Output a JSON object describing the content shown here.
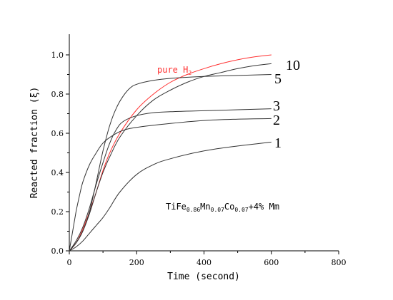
{
  "chart_data": {
    "type": "line",
    "xlabel": "Time (second)",
    "ylabel": "Reacted fraction (ξ)",
    "xlim": [
      0,
      800
    ],
    "ylim": [
      0,
      1.1
    ],
    "x_ticks": [
      "0",
      "200",
      "400",
      "600",
      "800"
    ],
    "y_ticks": [
      "0.0",
      "0.2",
      "0.4",
      "0.6",
      "0.8",
      "1.0"
    ],
    "grid": false,
    "annotation": {
      "base": "TiFe",
      "sub1": "0.86",
      "el2": "Mn",
      "sub2": "0.07",
      "el3": "Co",
      "sub3": "0.07",
      "suffix": "+4% Mm"
    },
    "series": [
      {
        "name": "pure H2",
        "label_main": "pure H",
        "label_sub": "2",
        "color": "#ff3030",
        "points": [
          [
            0,
            0
          ],
          [
            20,
            0.04
          ],
          [
            40,
            0.11
          ],
          [
            60,
            0.2
          ],
          [
            80,
            0.3
          ],
          [
            100,
            0.41
          ],
          [
            120,
            0.5
          ],
          [
            150,
            0.6
          ],
          [
            200,
            0.72
          ],
          [
            250,
            0.8
          ],
          [
            300,
            0.86
          ],
          [
            350,
            0.9
          ],
          [
            400,
            0.93
          ],
          [
            450,
            0.955
          ],
          [
            500,
            0.975
          ],
          [
            550,
            0.99
          ],
          [
            600,
            1.0
          ]
        ]
      },
      {
        "name": "10",
        "label_main": "10",
        "color": "#333333",
        "points": [
          [
            0,
            0
          ],
          [
            20,
            0.04
          ],
          [
            40,
            0.1
          ],
          [
            60,
            0.19
          ],
          [
            80,
            0.3
          ],
          [
            100,
            0.4
          ],
          [
            120,
            0.48
          ],
          [
            150,
            0.58
          ],
          [
            200,
            0.69
          ],
          [
            250,
            0.77
          ],
          [
            300,
            0.82
          ],
          [
            350,
            0.86
          ],
          [
            400,
            0.89
          ],
          [
            450,
            0.91
          ],
          [
            500,
            0.93
          ],
          [
            550,
            0.945
          ],
          [
            600,
            0.955
          ]
        ]
      },
      {
        "name": "5",
        "label_main": "5",
        "color": "#333333",
        "points": [
          [
            0,
            0
          ],
          [
            20,
            0.04
          ],
          [
            40,
            0.1
          ],
          [
            60,
            0.2
          ],
          [
            80,
            0.35
          ],
          [
            100,
            0.51
          ],
          [
            120,
            0.64
          ],
          [
            140,
            0.73
          ],
          [
            160,
            0.79
          ],
          [
            180,
            0.83
          ],
          [
            200,
            0.85
          ],
          [
            250,
            0.87
          ],
          [
            300,
            0.88
          ],
          [
            400,
            0.89
          ],
          [
            500,
            0.895
          ],
          [
            600,
            0.9
          ]
        ]
      },
      {
        "name": "3",
        "label_main": "3",
        "color": "#333333",
        "points": [
          [
            0,
            0
          ],
          [
            20,
            0.05
          ],
          [
            40,
            0.12
          ],
          [
            60,
            0.22
          ],
          [
            80,
            0.34
          ],
          [
            100,
            0.45
          ],
          [
            120,
            0.55
          ],
          [
            140,
            0.62
          ],
          [
            160,
            0.66
          ],
          [
            200,
            0.69
          ],
          [
            250,
            0.705
          ],
          [
            300,
            0.71
          ],
          [
            400,
            0.715
          ],
          [
            500,
            0.72
          ],
          [
            600,
            0.725
          ]
        ]
      },
      {
        "name": "2",
        "label_main": "2",
        "color": "#333333",
        "points": [
          [
            0,
            0
          ],
          [
            10,
            0.1
          ],
          [
            20,
            0.2
          ],
          [
            30,
            0.28
          ],
          [
            40,
            0.35
          ],
          [
            60,
            0.44
          ],
          [
            80,
            0.5
          ],
          [
            100,
            0.55
          ],
          [
            130,
            0.59
          ],
          [
            160,
            0.615
          ],
          [
            200,
            0.63
          ],
          [
            300,
            0.65
          ],
          [
            400,
            0.665
          ],
          [
            500,
            0.672
          ],
          [
            600,
            0.675
          ]
        ]
      },
      {
        "name": "1",
        "label_main": "1",
        "color": "#333333",
        "points": [
          [
            0,
            0
          ],
          [
            20,
            0.02
          ],
          [
            40,
            0.05
          ],
          [
            60,
            0.09
          ],
          [
            80,
            0.13
          ],
          [
            100,
            0.17
          ],
          [
            120,
            0.22
          ],
          [
            150,
            0.3
          ],
          [
            200,
            0.39
          ],
          [
            250,
            0.44
          ],
          [
            300,
            0.47
          ],
          [
            400,
            0.51
          ],
          [
            500,
            0.535
          ],
          [
            600,
            0.555
          ]
        ]
      }
    ]
  }
}
